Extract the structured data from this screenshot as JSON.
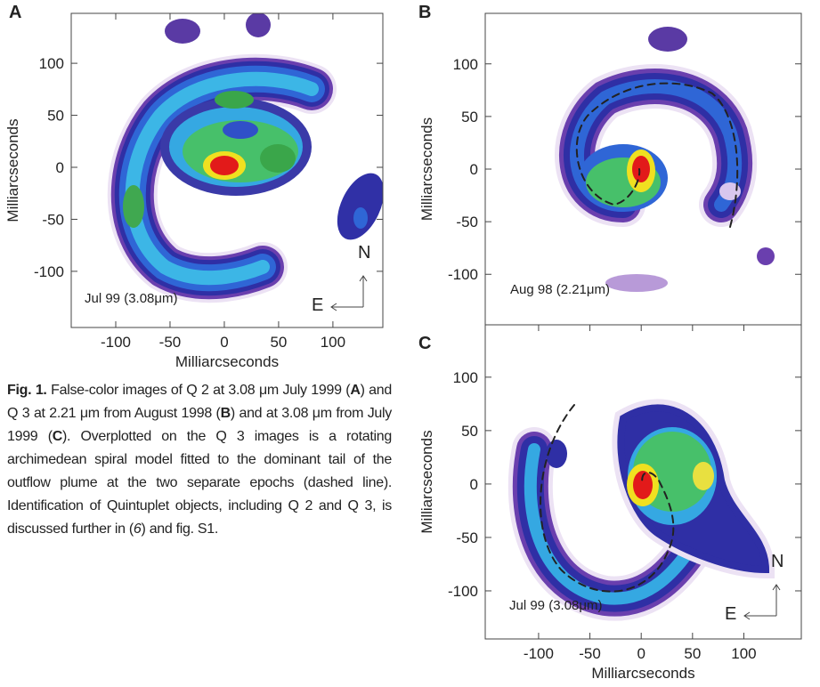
{
  "panels": [
    {
      "letter": "A",
      "xlim": [
        -141,
        146
      ],
      "ylim": [
        -154,
        148
      ],
      "xticks": [
        -100,
        -50,
        0,
        50,
        100
      ],
      "yticks": [
        -100,
        -50,
        0,
        50,
        100
      ],
      "x_label": "Milliarcseconds",
      "y_label": "Milliarcseconds",
      "epoch": "Jul 99 (3.08μm)",
      "compass": {
        "north": "N",
        "east": "E"
      }
    },
    {
      "letter": "B",
      "xlim": [
        -152,
        156
      ],
      "ylim": [
        -148,
        148
      ],
      "yticks": [
        -100,
        -50,
        0,
        50,
        100
      ],
      "y_label": "Milliarcseconds",
      "epoch": "Aug 98 (2.21μm)"
    },
    {
      "letter": "C",
      "xlim": [
        -152,
        156
      ],
      "ylim": [
        -145,
        149
      ],
      "xticks": [
        -100,
        -50,
        0,
        50,
        100
      ],
      "yticks": [
        -100,
        -50,
        0,
        50,
        100
      ],
      "x_label": "Milliarcseconds",
      "y_label": "Milliarcseconds",
      "epoch": "Jul 99 (3.08μm)",
      "compass": {
        "north": "N",
        "east": "E"
      }
    }
  ],
  "caption": {
    "label": "Fig. 1.",
    "segments": [
      "False-color images of Q 2 at 3.08 μm July 1999 (",
      "A",
      ") and Q 3 at 2.21 μm from August 1998 (",
      "B",
      ") and at 3.08 μm from July 1999 (",
      "C",
      "). Overplotted on the Q 3 images is a rotating archimedean spiral model fitted to the dominant tail of the outflow plume at the two separate epochs (dashed line). Identification of Quintuplet objects, including Q 2 and Q 3, is discussed further in (",
      "6",
      ") and fig. S1."
    ]
  }
}
